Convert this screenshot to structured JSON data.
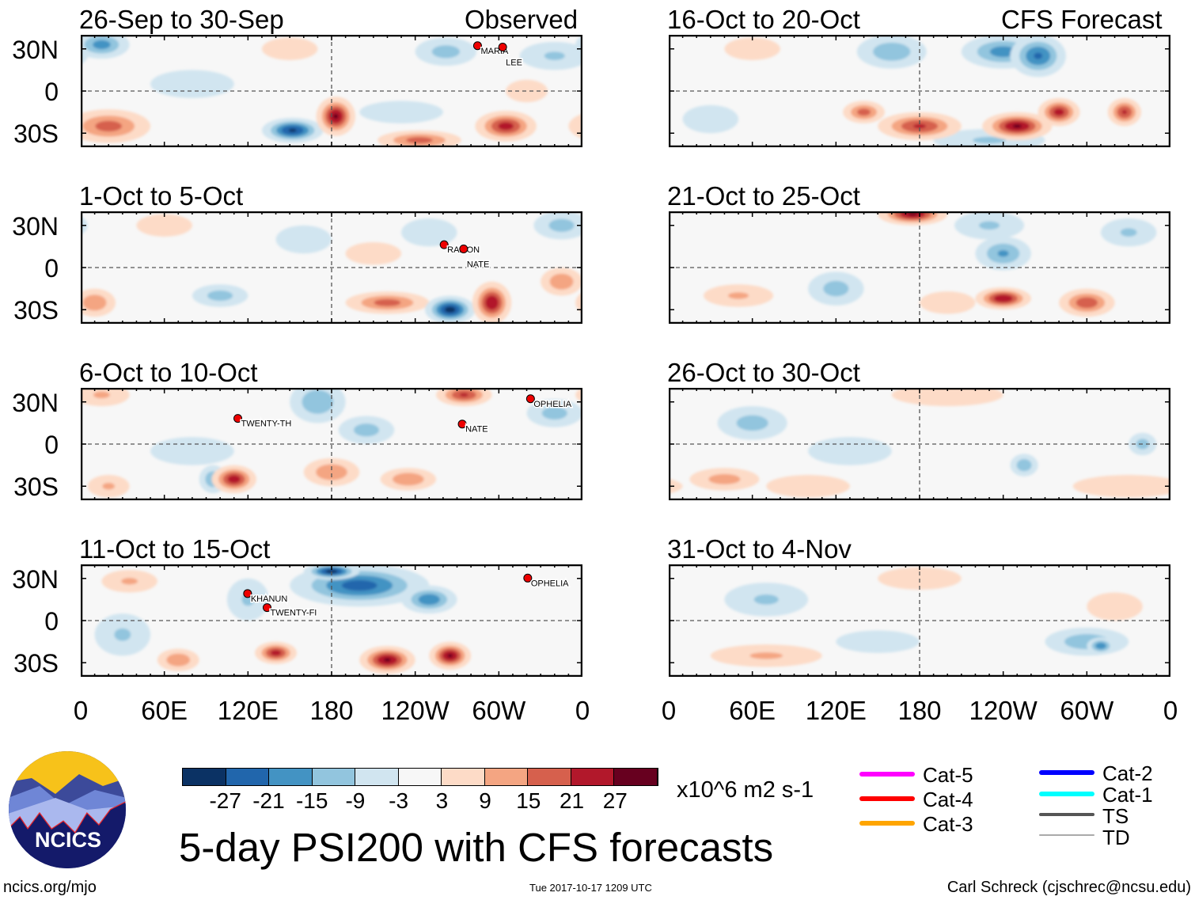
{
  "header": {
    "observed_label": "Observed",
    "forecast_label": "CFS Forecast"
  },
  "lat_labels": [
    "30N",
    "0",
    "30S"
  ],
  "lon_labels": [
    "0",
    "60E",
    "120E",
    "180",
    "120W",
    "60W",
    "0"
  ],
  "panels": [
    {
      "title": "26-Sep to 30-Sep",
      "column": "observed",
      "row": 0,
      "anomalies": [
        [
          20,
          -25,
          30,
          12,
          18
        ],
        [
          152,
          -28,
          22,
          9,
          -28
        ],
        [
          183,
          -18,
          14,
          14,
          28
        ],
        [
          243,
          -35,
          30,
          7,
          18
        ],
        [
          305,
          -25,
          22,
          11,
          24
        ],
        [
          15,
          33,
          20,
          10,
          -18
        ],
        [
          262,
          28,
          22,
          10,
          -12
        ],
        [
          340,
          25,
          25,
          10,
          -10
        ],
        [
          80,
          5,
          30,
          10,
          -6
        ],
        [
          230,
          -15,
          30,
          8,
          -8
        ],
        [
          150,
          30,
          20,
          8,
          5
        ],
        [
          320,
          0,
          15,
          8,
          5
        ]
      ],
      "storms": [
        {
          "name": "MARIA",
          "lon": 287,
          "lat": 30
        },
        {
          "name": "LEE",
          "lon": 305,
          "lat": 29
        }
      ]
    },
    {
      "title": "1-Oct to 5-Oct",
      "column": "observed",
      "row": 1,
      "anomalies": [
        [
          220,
          -25,
          30,
          8,
          18
        ],
        [
          10,
          -25,
          15,
          10,
          15
        ],
        [
          345,
          -10,
          15,
          10,
          15
        ],
        [
          265,
          -30,
          18,
          10,
          -30
        ],
        [
          295,
          -25,
          14,
          15,
          27
        ],
        [
          100,
          -20,
          20,
          8,
          -12
        ],
        [
          345,
          30,
          20,
          10,
          -12
        ],
        [
          160,
          20,
          20,
          10,
          -8
        ],
        [
          250,
          25,
          20,
          10,
          -8
        ],
        [
          60,
          30,
          20,
          8,
          8
        ],
        [
          210,
          10,
          20,
          8,
          6
        ]
      ],
      "storms": [
        {
          "name": "RAMON",
          "lon": 263,
          "lat": 14
        },
        {
          "name": "NATE",
          "lon": 277,
          "lat": 11
        }
      ]
    },
    {
      "title": "6-Oct to 10-Oct",
      "column": "observed",
      "row": 2,
      "anomalies": [
        [
          170,
          30,
          20,
          15,
          -15
        ],
        [
          205,
          10,
          20,
          10,
          -12
        ],
        [
          340,
          22,
          20,
          10,
          -12
        ],
        [
          80,
          -5,
          30,
          10,
          -8
        ],
        [
          95,
          -25,
          10,
          10,
          -15
        ],
        [
          110,
          -25,
          16,
          10,
          25
        ],
        [
          180,
          -20,
          20,
          10,
          15
        ],
        [
          235,
          -25,
          20,
          8,
          15
        ],
        [
          275,
          35,
          20,
          8,
          22
        ],
        [
          15,
          35,
          20,
          8,
          10
        ],
        [
          20,
          -30,
          15,
          8,
          10
        ]
      ],
      "storms": [
        {
          "name": "TWENTY-TH",
          "lon": 115,
          "lat": 16
        },
        {
          "name": "NATE",
          "lon": 276,
          "lat": 12
        },
        {
          "name": "OPHELIA",
          "lon": 325,
          "lat": 30
        }
      ]
    },
    {
      "title": "11-Oct to 15-Oct",
      "column": "observed",
      "row": 3,
      "anomalies": [
        [
          200,
          25,
          50,
          15,
          -24
        ],
        [
          180,
          35,
          20,
          6,
          -30
        ],
        [
          250,
          15,
          20,
          10,
          -20
        ],
        [
          30,
          -10,
          20,
          15,
          -10
        ],
        [
          120,
          15,
          15,
          15,
          -10
        ],
        [
          140,
          -23,
          15,
          8,
          24
        ],
        [
          220,
          -28,
          20,
          10,
          28
        ],
        [
          265,
          -25,
          15,
          10,
          28
        ],
        [
          35,
          28,
          20,
          8,
          10
        ],
        [
          70,
          -28,
          15,
          8,
          15
        ]
      ],
      "storms": [
        {
          "name": "KHANUN",
          "lon": 122,
          "lat": 17
        },
        {
          "name": "TWENTY-FI",
          "lon": 136,
          "lat": 7
        },
        {
          "name": "OPHELIA",
          "lon": 323,
          "lat": 28
        }
      ]
    },
    {
      "title": "16-Oct to 20-Oct",
      "column": "forecast",
      "row": 0,
      "anomalies": [
        [
          30,
          -20,
          20,
          10,
          -8
        ],
        [
          230,
          -35,
          40,
          8,
          -10
        ],
        [
          160,
          28,
          25,
          12,
          -14
        ],
        [
          240,
          28,
          30,
          12,
          -18
        ],
        [
          265,
          25,
          20,
          15,
          -22
        ],
        [
          180,
          -25,
          30,
          10,
          22
        ],
        [
          250,
          -25,
          25,
          10,
          28
        ],
        [
          280,
          -15,
          15,
          10,
          24
        ],
        [
          327,
          -15,
          12,
          10,
          22
        ],
        [
          60,
          30,
          20,
          8,
          8
        ],
        [
          140,
          -15,
          15,
          8,
          18
        ]
      ],
      "storms": []
    },
    {
      "title": "21-Oct to 25-Oct",
      "column": "forecast",
      "row": 1,
      "anomalies": [
        [
          120,
          -15,
          20,
          12,
          -12
        ],
        [
          230,
          30,
          25,
          10,
          -10
        ],
        [
          330,
          25,
          20,
          10,
          -10
        ],
        [
          240,
          10,
          20,
          12,
          -16
        ],
        [
          175,
          38,
          25,
          8,
          28
        ],
        [
          240,
          -22,
          20,
          8,
          27
        ],
        [
          300,
          -25,
          20,
          10,
          20
        ],
        [
          50,
          -20,
          25,
          8,
          10
        ],
        [
          200,
          -25,
          20,
          8,
          8
        ]
      ],
      "storms": []
    },
    {
      "title": "26-Oct to 30-Oct",
      "column": "forecast",
      "row": 2,
      "anomalies": [
        [
          130,
          -5,
          30,
          10,
          -6
        ],
        [
          200,
          35,
          40,
          8,
          6
        ],
        [
          330,
          -30,
          40,
          8,
          6
        ],
        [
          60,
          15,
          25,
          12,
          -12
        ],
        [
          40,
          -25,
          25,
          8,
          12
        ],
        [
          100,
          -30,
          30,
          8,
          8
        ],
        [
          255,
          -15,
          10,
          8,
          -14
        ],
        [
          340,
          0,
          10,
          8,
          -12
        ]
      ],
      "storms": []
    },
    {
      "title": "31-Oct to 4-Nov",
      "column": "forecast",
      "row": 3,
      "anomalies": [
        [
          150,
          -15,
          30,
          8,
          -6
        ],
        [
          180,
          30,
          30,
          8,
          6
        ],
        [
          320,
          10,
          20,
          10,
          6
        ],
        [
          70,
          -25,
          40,
          8,
          10
        ],
        [
          70,
          15,
          30,
          12,
          -10
        ],
        [
          300,
          -15,
          30,
          10,
          -14
        ],
        [
          310,
          -18,
          10,
          6,
          -20
        ]
      ],
      "storms": []
    }
  ],
  "colorbar": {
    "levels": [
      "-27",
      "-21",
      "-15",
      "-9",
      "-3",
      "3",
      "9",
      "15",
      "21",
      "27"
    ],
    "colors": [
      "#0b3264",
      "#2166ac",
      "#4393c3",
      "#92c5de",
      "#d1e5f0",
      "#f7f7f7",
      "#fddbc7",
      "#f4a582",
      "#d6604d",
      "#b2182b",
      "#67001f"
    ],
    "units": "x10^6 m2 s-1"
  },
  "legend": [
    {
      "label": "Cat-5",
      "color": "#ff00ff"
    },
    {
      "label": "Cat-4",
      "color": "#ff0000"
    },
    {
      "label": "Cat-3",
      "color": "#ffa500"
    },
    {
      "label": "Cat-2",
      "color": "#0000ff"
    },
    {
      "label": "Cat-1",
      "color": "#00ffff"
    },
    {
      "label": "TS",
      "color": "#555555"
    },
    {
      "label": "TD",
      "color": "#aaaaaa"
    }
  ],
  "title": "5-day PSI200 with CFS forecasts",
  "logo_text": "NCICS",
  "footer": {
    "left": "ncics.org/mjo",
    "center": "Tue 2017-10-17 1209 UTC",
    "right": "Carl Schreck (cjschrec@ncsu.edu)"
  }
}
